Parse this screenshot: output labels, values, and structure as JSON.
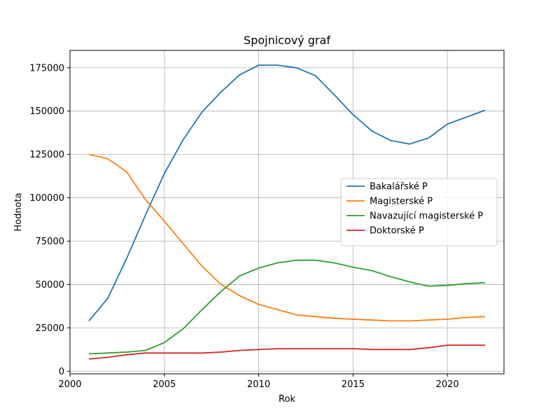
{
  "chart_data": {
    "type": "line",
    "title": "Spojnicový graf",
    "xlabel": "Rok",
    "ylabel": "Hodnota",
    "xlim": [
      2000,
      2023
    ],
    "ylim": [
      -1500,
      185000
    ],
    "xticks": [
      2000,
      2005,
      2010,
      2015,
      2020
    ],
    "yticks": [
      0,
      25000,
      50000,
      75000,
      100000,
      125000,
      150000,
      175000
    ],
    "grid": true,
    "legend_position": "center-right",
    "x": [
      2001,
      2002,
      2003,
      2004,
      2005,
      2006,
      2007,
      2008,
      2009,
      2010,
      2011,
      2012,
      2013,
      2014,
      2015,
      2016,
      2017,
      2018,
      2019,
      2020,
      2021,
      2022
    ],
    "series": [
      {
        "name": "Bakalářské P",
        "color": "#1f77b4",
        "values": [
          29000,
          42000,
          65000,
          90000,
          114000,
          133500,
          149500,
          161000,
          171000,
          176500,
          176500,
          175000,
          170500,
          159500,
          148000,
          138500,
          133000,
          131000,
          134500,
          142500,
          146500,
          150500
        ]
      },
      {
        "name": "Magisterské P",
        "color": "#ff7f0e",
        "values": [
          125000,
          122500,
          115000,
          99000,
          86500,
          73500,
          60500,
          50000,
          43500,
          38500,
          35500,
          32500,
          31500,
          30500,
          30000,
          29500,
          29000,
          29000,
          29500,
          30000,
          31000,
          31500
        ]
      },
      {
        "name": "Navazující magisterské P",
        "color": "#2ca02c",
        "values": [
          10000,
          10500,
          11000,
          12000,
          16500,
          24500,
          35500,
          46000,
          55000,
          59500,
          62500,
          64000,
          64000,
          62500,
          60000,
          58000,
          54500,
          51500,
          49000,
          49500,
          50500,
          51000
        ]
      },
      {
        "name": "Doktorské P",
        "color": "#d62728",
        "values": [
          7000,
          8000,
          9500,
          10500,
          10500,
          10500,
          10500,
          11000,
          12000,
          12500,
          13000,
          13000,
          13000,
          13000,
          13000,
          12500,
          12500,
          12500,
          13500,
          15000,
          15000,
          15000
        ]
      }
    ]
  }
}
